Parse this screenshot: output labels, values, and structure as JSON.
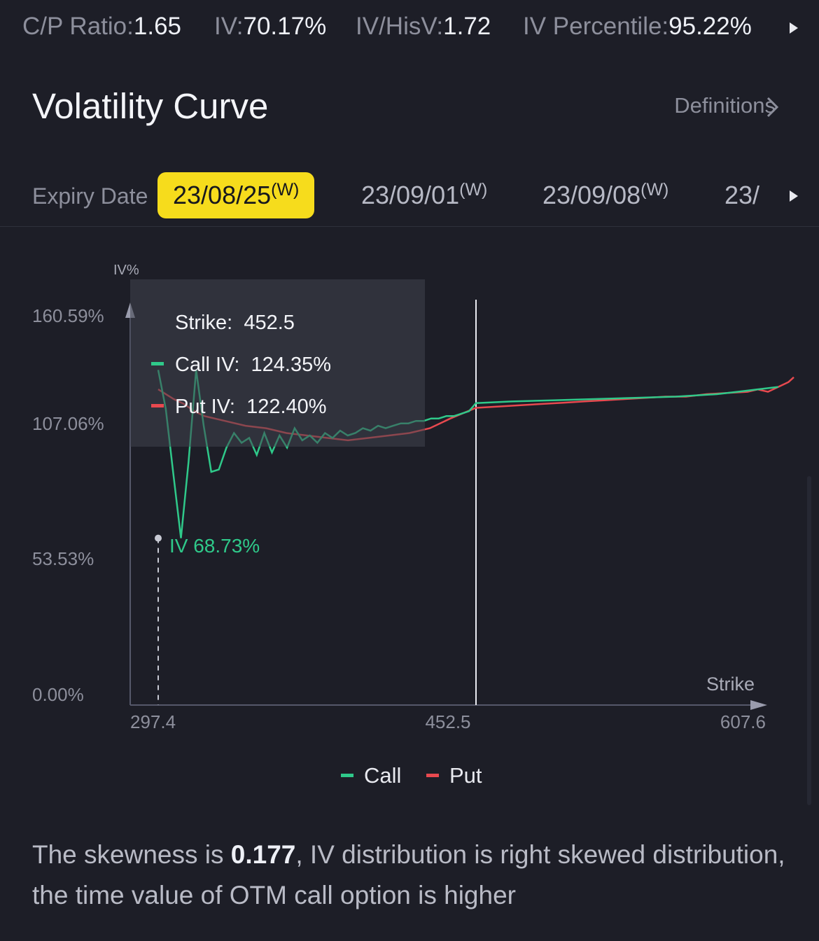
{
  "stats": {
    "cp_ratio_label": "C/P Ratio:",
    "cp_ratio_value": "1.65",
    "iv_label": "IV:",
    "iv_value": "70.17%",
    "iv_hisv_label": "IV/HisV:",
    "iv_hisv_value": "1.72",
    "iv_percentile_label": "IV Percentile:",
    "iv_percentile_value": "95.22%"
  },
  "header": {
    "title": "Volatility Curve",
    "definitions_label": "Definitions"
  },
  "expiry": {
    "label": "Expiry Date",
    "dates": [
      {
        "date": "23/08/25",
        "tag": "(W)",
        "selected": true
      },
      {
        "date": "23/09/01",
        "tag": "(W)",
        "selected": false
      },
      {
        "date": "23/09/08",
        "tag": "(W)",
        "selected": false
      },
      {
        "date": "23/",
        "tag": "",
        "selected": false
      }
    ]
  },
  "tooltip": {
    "strike_label": "Strike:",
    "strike_value": "452.5",
    "call_label": "Call IV:",
    "call_value": "124.35%",
    "put_label": "Put IV:",
    "put_value": "122.40%"
  },
  "annotation": "IV 68.73%",
  "legend": {
    "call": "Call",
    "put": "Put"
  },
  "summary": {
    "prefix": "The skewness is ",
    "skewness": "0.177",
    "suffix": ", IV distribution is right  skewed distribution, the time value of OTM call option is higher"
  },
  "colors": {
    "call": "#2fc98a",
    "put": "#e8494f",
    "accent": "#f6dc1c",
    "background": "#1d1e27"
  },
  "chart_data": {
    "type": "line",
    "ylabel": "IV%",
    "xlabel": "Strike",
    "y_ticks": [
      "160.59%",
      "107.06%",
      "53.53%",
      "0.00%"
    ],
    "x_ticks": [
      "297.4",
      "452.5",
      "607.6"
    ],
    "xlim": [
      297.4,
      607.6
    ],
    "ylim": [
      0,
      160.59
    ],
    "crosshair_strike": 452.5,
    "highlight_point": {
      "x": 297.4,
      "y": 68.73
    },
    "series": [
      {
        "name": "Call",
        "x": [
          297.4,
          301.1,
          304.8,
          308.5,
          312.2,
          315.9,
          319.6,
          323.3,
          327.0,
          330.7,
          334.4,
          338.1,
          341.8,
          345.5,
          349.2,
          352.9,
          356.6,
          360.3,
          364.0,
          367.7,
          371.4,
          375.1,
          378.8,
          382.5,
          386.2,
          389.9,
          393.6,
          397.3,
          401.0,
          404.7,
          408.4,
          412.1,
          415.8,
          419.5,
          423.2,
          426.9,
          430.6,
          434.3,
          438.0,
          441.7,
          445.4,
          449.1,
          452.5,
          470,
          490,
          510,
          530,
          550,
          570,
          580,
          590,
          600
        ],
        "y": [
          138,
          122,
          95,
          68.73,
          100,
          138,
          115,
          96,
          97,
          106,
          112,
          108,
          110,
          103,
          112,
          104,
          111,
          106,
          114,
          109,
          111,
          108,
          112,
          110,
          113,
          111,
          112,
          114,
          113,
          115,
          114,
          115,
          116,
          116,
          117,
          117,
          118,
          118,
          119,
          119,
          120,
          121,
          124.35,
          125,
          125.5,
          126,
          126.5,
          127,
          128,
          129,
          130,
          131
        ]
      },
      {
        "name": "Put",
        "x": [
          297.4,
          305,
          310,
          315,
          320,
          330,
          340,
          350,
          360,
          370,
          380,
          390,
          400,
          410,
          420,
          430,
          440,
          452.5,
          465,
          475,
          485,
          495,
          505,
          515,
          525,
          535,
          545,
          555,
          565,
          575,
          585,
          590,
          595,
          600,
          605,
          607.6
        ],
        "y": [
          130,
          126,
          124,
          121,
          119,
          117,
          115,
          114,
          112,
          111,
          110,
          109,
          110,
          111,
          112,
          114,
          118,
          122.4,
          123,
          123.5,
          124,
          124.5,
          125,
          125.5,
          126,
          126.5,
          127,
          127,
          128,
          128.5,
          129,
          130,
          129,
          131,
          133,
          135
        ]
      }
    ]
  }
}
